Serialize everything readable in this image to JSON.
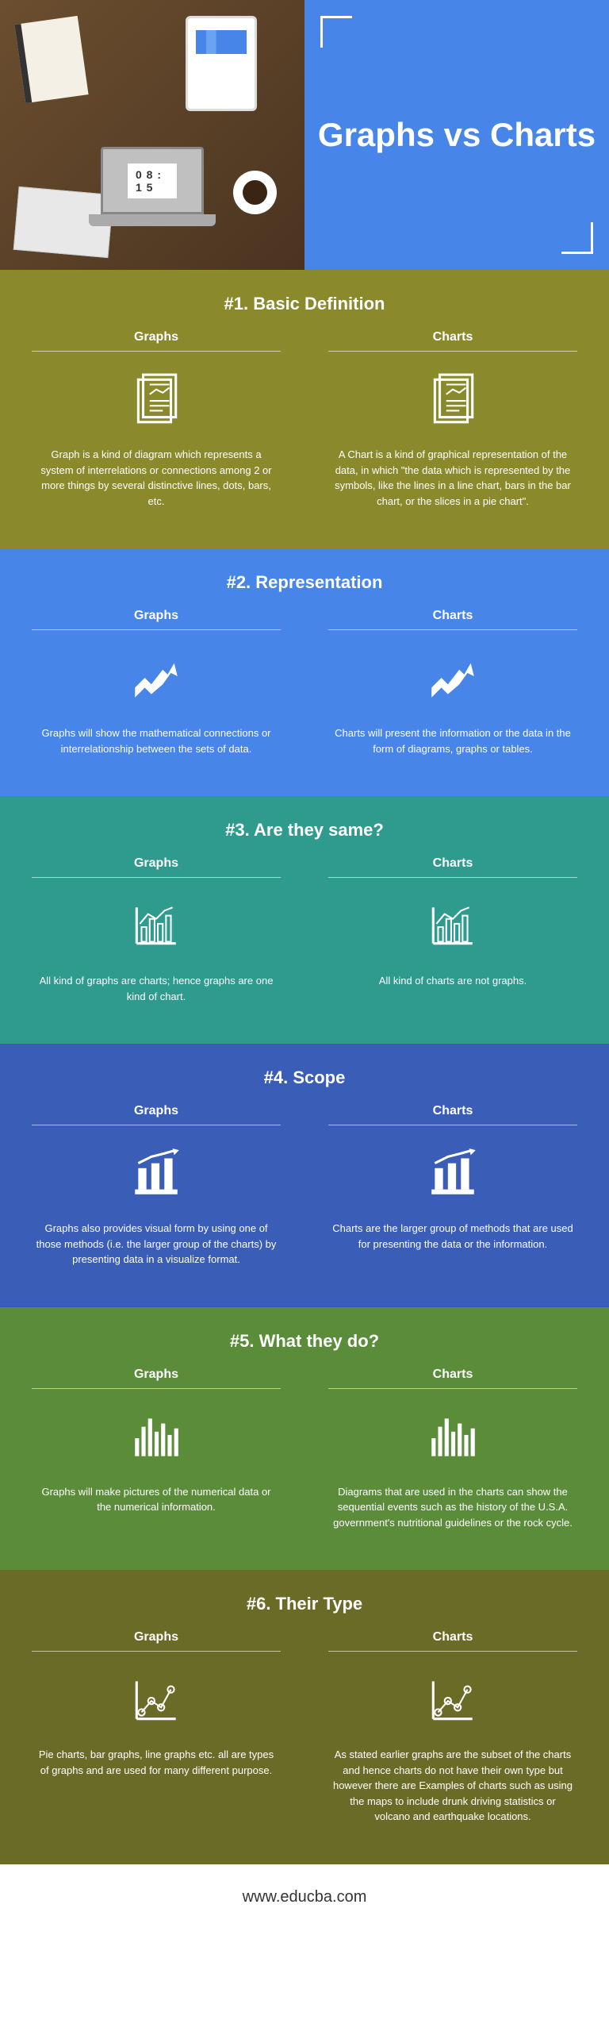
{
  "hero": {
    "title": "Graphs vs Charts"
  },
  "colors": {
    "blue": "#4785e8",
    "olive": "#8a8a2d",
    "teal": "#2f9b8f",
    "darkblue": "#3a5db8",
    "green": "#5a8c3a",
    "darkolive": "#6b6b28"
  },
  "columns": {
    "left": "Graphs",
    "right": "Charts"
  },
  "sections": [
    {
      "bg": "#8a8a2d",
      "title": "#1. Basic Definition",
      "icon": "document",
      "left": "Graph is a kind of diagram which represents a system of interrelations or connections among 2 or more things by several distinctive lines, dots, bars, etc.",
      "right": "A Chart is a kind of graphical representation of the data, in which \"the data which is represented by the symbols, like the lines in a line chart, bars in the bar chart, or the slices in a pie chart\"."
    },
    {
      "bg": "#4785e8",
      "title": "#2. Representation",
      "icon": "arrow",
      "left": "Graphs will show the mathematical connections or interrelationship between the sets of data.",
      "right": "Charts will present the information or the data in the form of diagrams, graphs or tables."
    },
    {
      "bg": "#2f9b8f",
      "title": "#3. Are they same?",
      "icon": "barchart",
      "left": "All kind of graphs are charts; hence graphs are one kind of chart.",
      "right": "All kind of charts are not graphs."
    },
    {
      "bg": "#3a5db8",
      "title": "#4. Scope",
      "icon": "pillars",
      "left": "Graphs also provides visual form by using one of those methods (i.e. the larger group of the charts) by presenting data in a visualize format.",
      "right": "Charts are the larger group of methods that are used for presenting the data or the information."
    },
    {
      "bg": "#5a8c3a",
      "title": "#5. What they do?",
      "icon": "bars",
      "left": "Graphs will make pictures of the numerical data or the numerical information.",
      "right": "Diagrams that are used in the charts can show the sequential events such as the history of the U.S.A. government's nutritional guidelines or the rock cycle."
    },
    {
      "bg": "#6b6b28",
      "title": "#6. Their Type",
      "icon": "linechart",
      "left": "Pie charts, bar graphs, line graphs etc. all are types of graphs and are used for many different purpose.",
      "right": "As stated earlier graphs are the subset of the charts and hence charts do not have their own type but however there are Examples of charts such as using the maps to include drunk driving statistics or volcano and earthquake locations."
    }
  ],
  "footer": "www.educba.com"
}
